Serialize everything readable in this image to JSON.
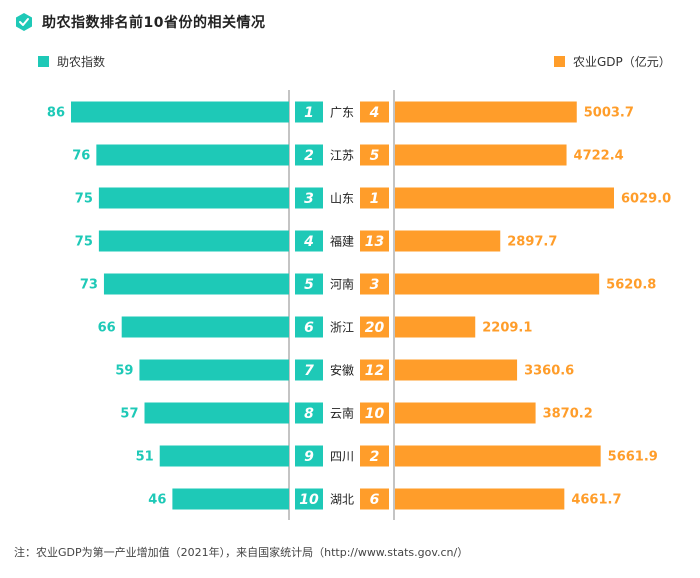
{
  "title": "助农指数排名前10省份的相关情况",
  "legend": {
    "left_label": "助农指数",
    "right_label": "农业GDP（亿元）"
  },
  "colors": {
    "index_bar": "#1ec9b7",
    "gdp_bar": "#ff9d2a",
    "gdp_rank_box": "#ff9d2a",
    "index_rank_box": "#1ec9b7",
    "axis_line": "#8a8a8a",
    "index_value_text": "#1ec9b7",
    "gdp_value_text": "#ff9d2a",
    "logo": "#1ec9b7"
  },
  "logo_icon": "hexagon-check-icon",
  "chart_data": {
    "type": "bar",
    "categories": [
      "广东",
      "江苏",
      "山东",
      "福建",
      "河南",
      "浙江",
      "安徽",
      "云南",
      "四川",
      "湖北"
    ],
    "index_rank": [
      "1",
      "2",
      "3",
      "4",
      "5",
      "6",
      "7",
      "8",
      "9",
      "10"
    ],
    "gdp_rank": [
      "4",
      "5",
      "1",
      "13",
      "3",
      "20",
      "12",
      "10",
      "2",
      "6"
    ],
    "series": [
      {
        "name": "助农指数",
        "values": [
          86,
          76,
          75,
          75,
          73,
          66,
          59,
          57,
          51,
          46
        ],
        "labels": [
          "86",
          "76",
          "75",
          "75",
          "73",
          "66",
          "59",
          "57",
          "51",
          "46"
        ]
      },
      {
        "name": "农业GDP（亿元）",
        "values": [
          5003.7,
          4722.4,
          6029.0,
          2897.7,
          5620.8,
          2209.1,
          3360.6,
          3870.2,
          5661.9,
          4661.7
        ],
        "labels": [
          "5003.7",
          "4722.4",
          "6029.0",
          "2897.7",
          "5620.8",
          "2209.1",
          "3360.6",
          "3870.2",
          "5661.9",
          "4661.7"
        ]
      }
    ]
  },
  "footnote": "注：农业GDP为第一产业增加值（2021年），来自国家统计局（http://www.stats.gov.cn/）"
}
